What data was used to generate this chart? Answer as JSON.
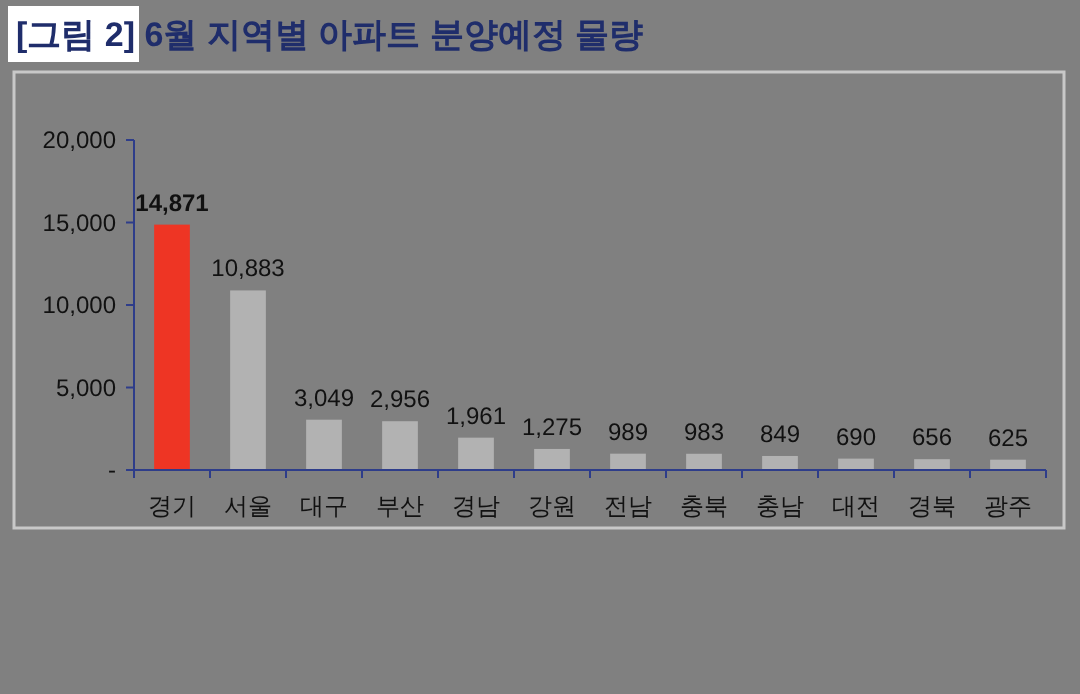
{
  "chart_data": {
    "type": "bar",
    "title": "[그림 2] 6월 지역별 아파트 분양예정 물량",
    "categories": [
      "경기",
      "서울",
      "대구",
      "부산",
      "경남",
      "강원",
      "전남",
      "충북",
      "충남",
      "대전",
      "경북",
      "광주"
    ],
    "values": [
      14871,
      10883,
      3049,
      2956,
      1961,
      1275,
      989,
      983,
      849,
      690,
      656,
      625
    ],
    "value_labels": [
      "14,871",
      "10,883",
      "3,049",
      "2,956",
      "1,961",
      "1,275",
      "989",
      "983",
      "849",
      "690",
      "656",
      "625"
    ],
    "colors": [
      "#ee3524",
      "#b2b2b2",
      "#b2b2b2",
      "#b2b2b2",
      "#b2b2b2",
      "#b2b2b2",
      "#b2b2b2",
      "#b2b2b2",
      "#b2b2b2",
      "#b2b2b2",
      "#b2b2b2",
      "#b2b2b2"
    ],
    "ylim": [
      0,
      20000
    ],
    "yticks": [
      {
        "value": 0,
        "label": "-"
      },
      {
        "value": 5000,
        "label": "5,000"
      },
      {
        "value": 10000,
        "label": "10,000"
      },
      {
        "value": 15000,
        "label": "15,000"
      },
      {
        "value": 20000,
        "label": "20,000"
      }
    ],
    "grid": false
  }
}
